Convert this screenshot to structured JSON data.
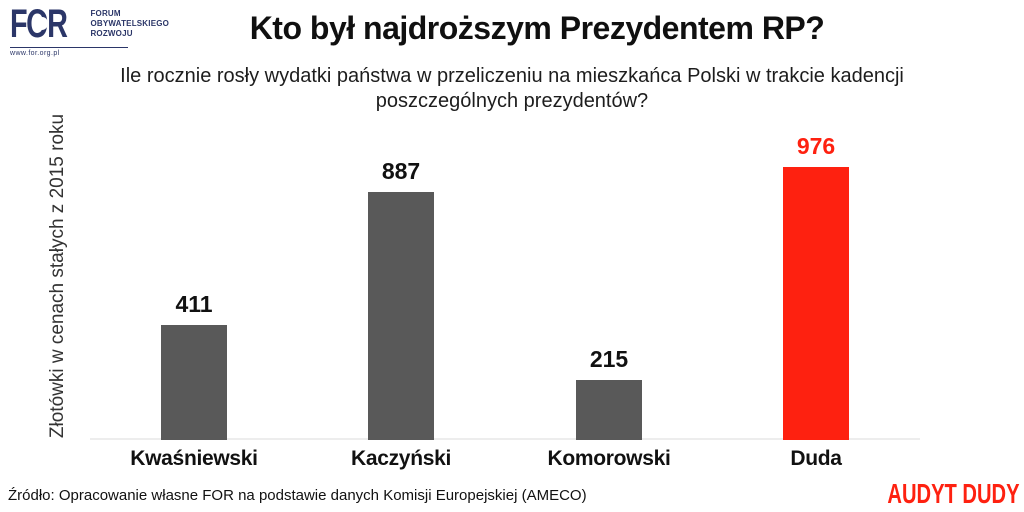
{
  "logo": {
    "acronym": "FOR",
    "name_lines": [
      "FORUM",
      "OBYWATELSKIEGO",
      "ROZWOJU"
    ],
    "website": "www.for.org.pl"
  },
  "header": {
    "title": "Kto był najdroższym Prezydentem RP?",
    "subtitle": "Ile rocznie rosły wydatki państwa w przeliczeniu na mieszkańca Polski w trakcie kadencji poszczególnych prezydentów?"
  },
  "chart_data": {
    "type": "bar",
    "categories": [
      "Kwaśniewski",
      "Kaczyński",
      "Komorowski",
      "Duda"
    ],
    "values": [
      411,
      887,
      215,
      976
    ],
    "title": "",
    "xlabel": "",
    "ylabel": "Złotówki w cenach stałych z 2015 roku",
    "ylim": [
      0,
      1000
    ],
    "grid": false,
    "legend": "none",
    "bar_color": "#595959",
    "highlight_index": 3,
    "highlight_color": "#fe2110",
    "value_labels_shown": true
  },
  "footer": {
    "source": "Źródło: Opracowanie własne FOR na podstawie danych Komisji Europejskiej (AMECO)",
    "campaign": "AUDYT DUDY"
  },
  "colors": {
    "background": "#ffffff",
    "accent_red": "#fe2110",
    "bar_gray": "#595959",
    "logo_navy": "#2b3668",
    "baseline_gray": "#ededed",
    "text_dark": "#111111"
  }
}
